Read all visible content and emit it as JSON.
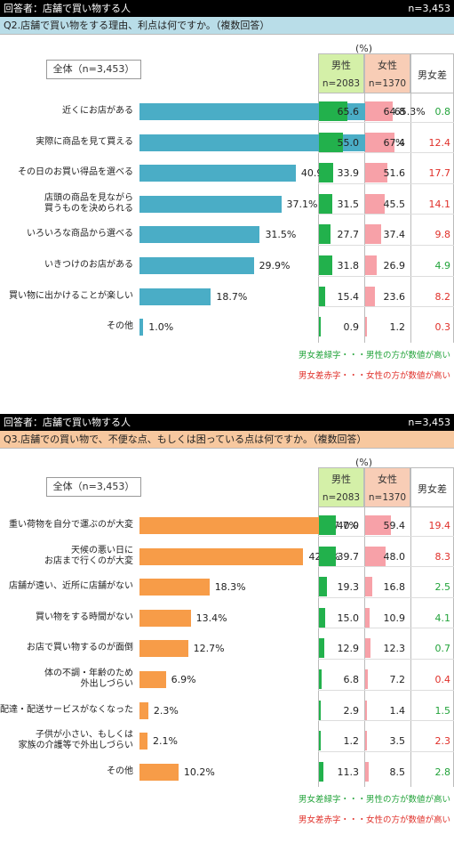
{
  "legend": {
    "male_header": "男性",
    "female_header": "女性",
    "male_n": "n=2083",
    "female_n": "n=1370",
    "diff_header": "男女差",
    "unit": "(%)",
    "note_green": "男女差緑字・・・男性の方が数値が高い",
    "note_red": "男女差赤字・・・女性の方が数値が高い",
    "green_color": "#22a33a",
    "red_color": "#e0302a"
  },
  "chart_data": [
    {
      "type": "bar",
      "respondent": "回答者：店舗で買い物する人",
      "n": "n=3,453",
      "title": "Q2.店舗で買い物をする理由、利点は何ですか。（複数回答）",
      "total_label": "全体（n=3,453）",
      "bar_color": "#4aadc6",
      "categories": [
        "近くにお店がある",
        "実際に商品を見て買える",
        "その日のお買い得品を選べる",
        "店頭の商品を見ながら\n買うものを決められる",
        "いろいろな商品から選べる",
        "いきつけのお店がある",
        "買い物に出かけることが楽しい",
        "その他"
      ],
      "total": [
        65.3,
        59.9,
        40.9,
        37.1,
        31.5,
        29.9,
        18.7,
        1.0
      ],
      "total_labels": [
        "65.3%",
        "59.9%",
        "40.9%",
        "37.1%",
        "31.5%",
        "29.9%",
        "18.7%",
        "1.0%"
      ],
      "male": [
        65.6,
        55.0,
        33.9,
        31.5,
        27.7,
        31.8,
        15.4,
        0.9
      ],
      "male_labels": [
        "65.6",
        "55.0",
        "33.9",
        "31.5",
        "27.7",
        "31.8",
        "15.4",
        "0.9"
      ],
      "female": [
        64.8,
        67.4,
        51.6,
        45.5,
        37.4,
        26.9,
        23.6,
        1.2
      ],
      "female_labels": [
        "64.8",
        "67.4",
        "51.6",
        "45.5",
        "37.4",
        "26.9",
        "23.6",
        "1.2"
      ],
      "diff": [
        "0.8",
        "12.4",
        "17.7",
        "14.1",
        "9.8",
        "4.9",
        "8.2",
        "0.3"
      ],
      "diff_male_higher": [
        true,
        false,
        false,
        false,
        false,
        true,
        false,
        false
      ]
    },
    {
      "type": "bar",
      "respondent": "回答者：店舗で買い物する人",
      "n": "n=3,453",
      "title": "Q3.店舗での買い物で、不便な点、もしくは困っている点は何ですか。（複数回答）",
      "total_label": "全体（n=3,453）",
      "bar_color": "#f79c48",
      "categories": [
        "重い荷物を自分で運ぶのが大変",
        "天候の悪い日に\nお店まで行くのが大変",
        "店舗が遠い、近所に店舗がない",
        "買い物をする時間がない",
        "お店で買い物するのが面倒",
        "体の不調・年齢のため\n外出しづらい",
        "配達・配送サービスがなくなった",
        "子供が小さい、もしくは\n家族の介護等で外出しづらい",
        "その他"
      ],
      "total": [
        47.7,
        42.9,
        18.3,
        13.4,
        12.7,
        6.9,
        2.3,
        2.1,
        10.2
      ],
      "total_labels": [
        "47.7%",
        "42.9%",
        "18.3%",
        "13.4%",
        "12.7%",
        "6.9%",
        "2.3%",
        "2.1%",
        "10.2%"
      ],
      "male": [
        40.0,
        39.7,
        19.3,
        15.0,
        12.9,
        6.8,
        2.9,
        1.2,
        11.3
      ],
      "male_labels": [
        "40.0",
        "39.7",
        "19.3",
        "15.0",
        "12.9",
        "6.8",
        "2.9",
        "1.2",
        "11.3"
      ],
      "female": [
        59.4,
        48.0,
        16.8,
        10.9,
        12.3,
        7.2,
        1.4,
        3.5,
        8.5
      ],
      "female_labels": [
        "59.4",
        "48.0",
        "16.8",
        "10.9",
        "12.3",
        "7.2",
        "1.4",
        "3.5",
        "8.5"
      ],
      "diff": [
        "19.4",
        "8.3",
        "2.5",
        "4.1",
        "0.7",
        "0.4",
        "1.5",
        "2.3",
        "2.8"
      ],
      "diff_male_higher": [
        false,
        false,
        true,
        true,
        true,
        false,
        true,
        false,
        true
      ]
    }
  ]
}
